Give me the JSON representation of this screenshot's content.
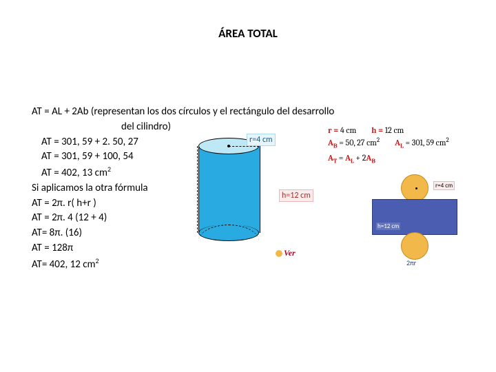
{
  "title": "ÁREA TOTAL",
  "lines": {
    "l1": "AT = AL + 2Ab (representan los dos círculos y el rectángulo del desarrollo",
    "l2": "del cilindro)",
    "l3": "AT = 301, 59 + 2. 50, 27",
    "l4": "AT = 301, 59 + 100, 54",
    "l5": "AT = 402, 13 cm",
    "l5sup": "2",
    "l6": "Si aplicamos la otra fórmula",
    "l7": "AT = 2π. r( h+r )",
    "l8": "AT = 2π. 4 (12 + 4)",
    "l9": "AT= 8π. (16)",
    "l10": "AT = 128π",
    "l11": "AT= 402, 12 cm",
    "l11sup": "2"
  },
  "labels": {
    "r": "r=4 cm",
    "h": "h=12 cm"
  },
  "formulas": {
    "r_pre": "r = ",
    "r_val": "4 cm",
    "h_pre": "h = ",
    "h_val": "12 cm",
    "ab": "A",
    "ab_sub": "B",
    "ab_rest": " = 50, 27 cm",
    "al": "A",
    "al_sub": "L",
    "al_rest": " = 301, 59 cm",
    "at_line_a": "A",
    "at_sub": "T",
    "at_eq": " = ",
    "al2_sub": "L",
    "plus": " + 2",
    "ab2_sub": "B",
    "sup2": "2"
  },
  "net": {
    "r": "r=4 cm",
    "h": "h=12 cm",
    "pi": "2πr"
  },
  "ver": "Ver",
  "colors": {
    "cyl_fill": "#29abe2",
    "cyl_top": "#bfe8f7",
    "net_rect": "#4a5db0",
    "net_circ": "#f3b84a",
    "red": "#c11d1d"
  }
}
